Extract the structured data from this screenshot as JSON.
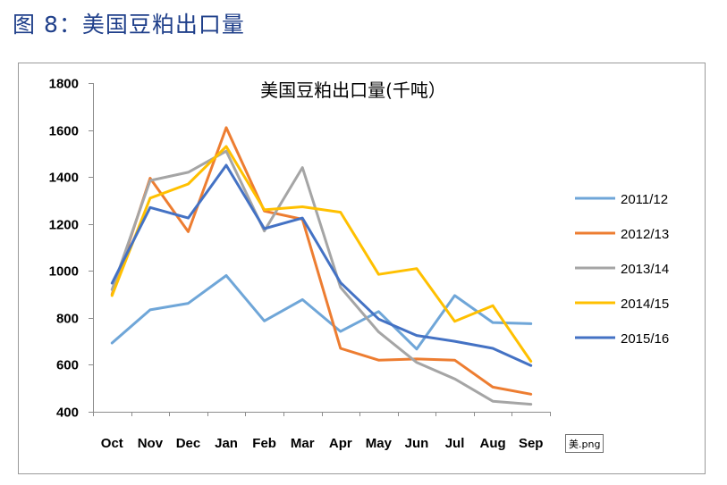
{
  "figure": {
    "caption": "图 8：美国豆粕出口量"
  },
  "footer": {
    "image_label": "美.png"
  },
  "colors": {
    "2011/12": "#6fa6d8",
    "2012/13": "#ed7d31",
    "2013/14": "#a5a5a5",
    "2014/15": "#ffc000",
    "2015/16": "#4472c4"
  },
  "chart_data": {
    "type": "line",
    "title": "美国豆粕出口量(千吨）",
    "xlabel": "",
    "ylabel": "",
    "categories": [
      "Oct",
      "Nov",
      "Dec",
      "Jan",
      "Feb",
      "Mar",
      "Apr",
      "May",
      "Jun",
      "Jul",
      "Aug",
      "Sep"
    ],
    "ylim": [
      400,
      1800
    ],
    "yticks": [
      400,
      600,
      800,
      1000,
      1200,
      1400,
      1600,
      1800
    ],
    "grid": false,
    "legend_position": "right",
    "series": [
      {
        "name": "2011/12",
        "values": [
          693,
          834,
          862,
          980,
          787,
          878,
          742,
          827,
          667,
          895,
          780,
          775
        ]
      },
      {
        "name": "2012/13",
        "values": [
          900,
          1395,
          1167,
          1610,
          1255,
          1220,
          670,
          620,
          625,
          620,
          505,
          475
        ]
      },
      {
        "name": "2013/14",
        "values": [
          920,
          1385,
          1420,
          1510,
          1170,
          1440,
          930,
          740,
          610,
          540,
          445,
          432
        ]
      },
      {
        "name": "2014/15",
        "values": [
          895,
          1310,
          1370,
          1530,
          1260,
          1273,
          1250,
          985,
          1010,
          785,
          852,
          615
        ]
      },
      {
        "name": "2015/16",
        "values": [
          948,
          1270,
          1225,
          1450,
          1180,
          1225,
          950,
          795,
          725,
          700,
          670,
          597
        ]
      }
    ]
  }
}
